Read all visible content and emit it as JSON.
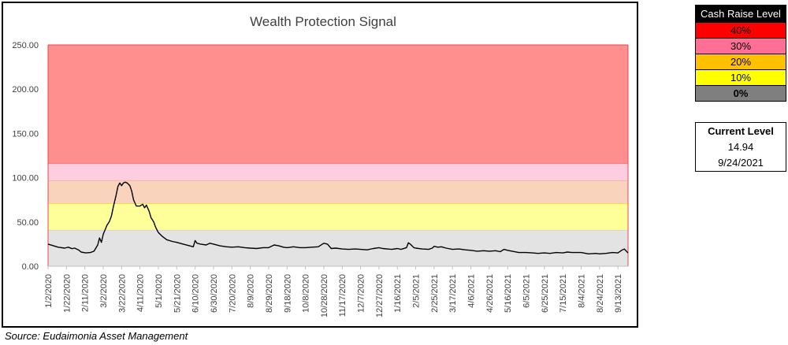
{
  "chart_data": {
    "type": "line",
    "title": "Wealth Protection Signal",
    "xlabel": "",
    "ylabel": "",
    "ylim": [
      0,
      250
    ],
    "y_ticks": [
      "0.00",
      "50.00",
      "100.00",
      "150.00",
      "200.00",
      "250.00"
    ],
    "x_range": [
      "2020-01-02",
      "2021-09-24"
    ],
    "x_ticks": [
      "1/2/2020",
      "1/22/2020",
      "2/11/2020",
      "3/2/2020",
      "3/22/2020",
      "4/11/2020",
      "5/1/2020",
      "5/21/2020",
      "6/10/2020",
      "6/30/2020",
      "7/20/2020",
      "8/9/2020",
      "8/29/2020",
      "9/18/2020",
      "10/8/2020",
      "10/28/2020",
      "11/17/2020",
      "12/7/2020",
      "12/27/2020",
      "1/16/2021",
      "2/5/2021",
      "2/25/2021",
      "3/17/2021",
      "4/6/2021",
      "4/26/2021",
      "5/16/2021",
      "6/5/2021",
      "6/25/2021",
      "7/15/2021",
      "8/4/2021",
      "8/24/2021",
      "9/13/2021"
    ],
    "bands": [
      {
        "from": 0,
        "to": 41,
        "color": "#e3e3e3",
        "edge": "#c8c8c8"
      },
      {
        "from": 41,
        "to": 71,
        "color": "#ffff99",
        "edge": "#f0d000"
      },
      {
        "from": 71,
        "to": 97,
        "color": "#fad3bd",
        "edge": "#f4a080"
      },
      {
        "from": 97,
        "to": 116,
        "color": "#ffcde0",
        "edge": "#f06080"
      },
      {
        "from": 116,
        "to": 250,
        "color": "#ff8e8e",
        "edge": "#e44b4b"
      }
    ],
    "series": [
      {
        "color": "#000000",
        "points": [
          [
            "2020-01-02",
            25.0
          ],
          [
            "2020-01-08",
            23.0
          ],
          [
            "2020-01-13",
            21.5
          ],
          [
            "2020-01-20",
            20.5
          ],
          [
            "2020-01-24",
            21.5
          ],
          [
            "2020-01-28",
            19.8
          ],
          [
            "2020-01-31",
            20.5
          ],
          [
            "2020-02-04",
            18.5
          ],
          [
            "2020-02-07",
            16.0
          ],
          [
            "2020-02-12",
            15.0
          ],
          [
            "2020-02-17",
            15.5
          ],
          [
            "2020-02-21",
            17.0
          ],
          [
            "2020-02-25",
            24.0
          ],
          [
            "2020-02-27",
            32.0
          ],
          [
            "2020-02-29",
            27.0
          ],
          [
            "2020-03-02",
            36.0
          ],
          [
            "2020-03-04",
            41.0
          ],
          [
            "2020-03-06",
            46.0
          ],
          [
            "2020-03-09",
            51.0
          ],
          [
            "2020-03-11",
            57.0
          ],
          [
            "2020-03-13",
            67.0
          ],
          [
            "2020-03-16",
            80.0
          ],
          [
            "2020-03-18",
            90.0
          ],
          [
            "2020-03-20",
            94.0
          ],
          [
            "2020-03-22",
            91.0
          ],
          [
            "2020-03-24",
            94.0
          ],
          [
            "2020-03-26",
            95.0
          ],
          [
            "2020-03-28",
            94.0
          ],
          [
            "2020-03-31",
            91.0
          ],
          [
            "2020-04-02",
            85.0
          ],
          [
            "2020-04-04",
            75.0
          ],
          [
            "2020-04-07",
            68.0
          ],
          [
            "2020-04-11",
            68.0
          ],
          [
            "2020-04-14",
            70.0
          ],
          [
            "2020-04-16",
            66.0
          ],
          [
            "2020-04-18",
            69.0
          ],
          [
            "2020-04-21",
            62.0
          ],
          [
            "2020-04-23",
            55.0
          ],
          [
            "2020-04-26",
            50.0
          ],
          [
            "2020-04-28",
            44.0
          ],
          [
            "2020-05-01",
            38.0
          ],
          [
            "2020-05-05",
            34.0
          ],
          [
            "2020-05-10",
            30.0
          ],
          [
            "2020-05-16",
            28.0
          ],
          [
            "2020-05-21",
            27.0
          ],
          [
            "2020-05-28",
            25.0
          ],
          [
            "2020-06-04",
            23.0
          ],
          [
            "2020-06-08",
            22.0
          ],
          [
            "2020-06-10",
            29.0
          ],
          [
            "2020-06-12",
            26.0
          ],
          [
            "2020-06-16",
            25.0
          ],
          [
            "2020-06-22",
            24.0
          ],
          [
            "2020-06-26",
            26.0
          ],
          [
            "2020-06-30",
            25.0
          ],
          [
            "2020-07-07",
            23.0
          ],
          [
            "2020-07-14",
            22.0
          ],
          [
            "2020-07-20",
            21.5
          ],
          [
            "2020-07-27",
            22.0
          ],
          [
            "2020-08-03",
            21.0
          ],
          [
            "2020-08-09",
            20.5
          ],
          [
            "2020-08-16",
            20.0
          ],
          [
            "2020-08-23",
            21.0
          ],
          [
            "2020-08-29",
            21.0
          ],
          [
            "2020-09-04",
            24.0
          ],
          [
            "2020-09-09",
            23.0
          ],
          [
            "2020-09-14",
            21.5
          ],
          [
            "2020-09-18",
            21.0
          ],
          [
            "2020-09-25",
            22.0
          ],
          [
            "2020-10-02",
            21.0
          ],
          [
            "2020-10-08",
            21.0
          ],
          [
            "2020-10-15",
            21.5
          ],
          [
            "2020-10-22",
            22.0
          ],
          [
            "2020-10-28",
            26.0
          ],
          [
            "2020-11-01",
            25.0
          ],
          [
            "2020-11-05",
            20.0
          ],
          [
            "2020-11-10",
            20.5
          ],
          [
            "2020-11-17",
            19.5
          ],
          [
            "2020-11-24",
            19.0
          ],
          [
            "2020-12-01",
            19.5
          ],
          [
            "2020-12-07",
            19.0
          ],
          [
            "2020-12-14",
            18.5
          ],
          [
            "2020-12-21",
            20.0
          ],
          [
            "2020-12-27",
            21.0
          ],
          [
            "2020-12-31",
            20.0
          ],
          [
            "2021-01-05",
            19.5
          ],
          [
            "2021-01-10",
            19.0
          ],
          [
            "2021-01-16",
            20.0
          ],
          [
            "2021-01-20",
            19.0
          ],
          [
            "2021-01-26",
            21.0
          ],
          [
            "2021-01-28",
            26.5
          ],
          [
            "2021-01-30",
            25.0
          ],
          [
            "2021-02-03",
            21.0
          ],
          [
            "2021-02-05",
            20.5
          ],
          [
            "2021-02-12",
            19.5
          ],
          [
            "2021-02-19",
            19.0
          ],
          [
            "2021-02-23",
            20.5
          ],
          [
            "2021-02-25",
            22.5
          ],
          [
            "2021-03-01",
            21.5
          ],
          [
            "2021-03-05",
            22.0
          ],
          [
            "2021-03-10",
            20.5
          ],
          [
            "2021-03-17",
            19.0
          ],
          [
            "2021-03-24",
            19.5
          ],
          [
            "2021-03-31",
            18.5
          ],
          [
            "2021-04-06",
            18.0
          ],
          [
            "2021-04-13",
            17.0
          ],
          [
            "2021-04-20",
            17.5
          ],
          [
            "2021-04-26",
            17.0
          ],
          [
            "2021-05-03",
            17.5
          ],
          [
            "2021-05-08",
            16.5
          ],
          [
            "2021-05-12",
            19.0
          ],
          [
            "2021-05-16",
            18.0
          ],
          [
            "2021-05-21",
            17.0
          ],
          [
            "2021-05-28",
            15.5
          ],
          [
            "2021-06-05",
            15.5
          ],
          [
            "2021-06-12",
            15.0
          ],
          [
            "2021-06-18",
            14.5
          ],
          [
            "2021-06-25",
            15.0
          ],
          [
            "2021-07-01",
            14.5
          ],
          [
            "2021-07-08",
            15.5
          ],
          [
            "2021-07-15",
            15.0
          ],
          [
            "2021-07-20",
            16.0
          ],
          [
            "2021-07-25",
            15.5
          ],
          [
            "2021-08-04",
            15.5
          ],
          [
            "2021-08-12",
            14.0
          ],
          [
            "2021-08-20",
            14.5
          ],
          [
            "2021-08-24",
            14.0
          ],
          [
            "2021-08-31",
            14.5
          ],
          [
            "2021-09-07",
            15.5
          ],
          [
            "2021-09-13",
            15.0
          ],
          [
            "2021-09-17",
            18.0
          ],
          [
            "2021-09-20",
            19.5
          ],
          [
            "2021-09-24",
            14.94
          ]
        ]
      }
    ]
  },
  "legend": {
    "header": "Cash Raise Level",
    "rows": [
      {
        "label": "40%",
        "color": "#ff0000"
      },
      {
        "label": "30%",
        "color": "#ff6f95"
      },
      {
        "label": "20%",
        "color": "#ffc000"
      },
      {
        "label": "10%",
        "color": "#ffff00"
      },
      {
        "label": "0%",
        "color": "#7f7f7f"
      }
    ]
  },
  "current": {
    "title": "Current Level",
    "value": "14.94",
    "date": "9/24/2021"
  },
  "source": "Source:  Eudaimonia Asset Management"
}
